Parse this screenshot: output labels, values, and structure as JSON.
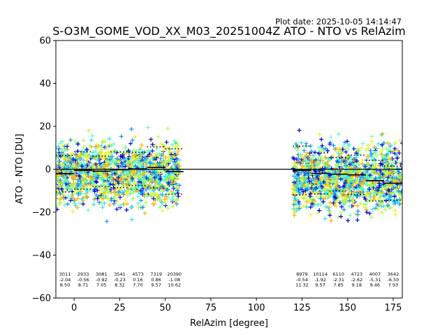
{
  "plot_date": "Plot date: 2025-10-05 14:14:47",
  "chart_data": {
    "type": "scatter",
    "title": "S-O3M_GOME_VOD_XX_M03_20251004Z ATO - NTO vs RelAzim",
    "xlabel": "RelAzim [degree]",
    "ylabel": "ATO - NTO [DU]",
    "xlim": [
      -10,
      180
    ],
    "ylim": [
      -60,
      60
    ],
    "xticks": [
      0,
      25,
      50,
      75,
      100,
      125,
      150,
      175
    ],
    "yticks": [
      -60,
      -40,
      -20,
      0,
      20,
      40,
      60
    ],
    "grid": false,
    "marker": "+",
    "colormap": [
      "#0000d8",
      "#1590f0",
      "#2de2e8",
      "#5effc0",
      "#b0ff50",
      "#f0f020",
      "#ffb000"
    ],
    "clusters": [
      {
        "x_range": [
          -10,
          58
        ],
        "y_center": -2,
        "spread": 13
      },
      {
        "x_range": [
          120,
          180
        ],
        "y_center": -4,
        "spread": 14
      }
    ],
    "bins": [
      {
        "x_start": -10,
        "x_end": 0,
        "mean": -2.04,
        "sigma": 8.5,
        "n": 3011
      },
      {
        "x_start": 0,
        "x_end": 10,
        "mean": -0.56,
        "sigma": 8.71,
        "n": 2933
      },
      {
        "x_start": 10,
        "x_end": 20,
        "mean": -0.92,
        "sigma": 7.05,
        "n": 3081
      },
      {
        "x_start": 20,
        "x_end": 30,
        "mean": -0.23,
        "sigma": 8.32,
        "n": 3541
      },
      {
        "x_start": 30,
        "x_end": 40,
        "mean": 0.16,
        "sigma": 7.7,
        "n": 4573
      },
      {
        "x_start": 40,
        "x_end": 50,
        "mean": 0.86,
        "sigma": 9.57,
        "n": 7319
      },
      {
        "x_start": 50,
        "x_end": 60,
        "mean": -1.08,
        "sigma": 10.62,
        "n": 20390
      },
      {
        "x_start": 120,
        "x_end": 130,
        "mean": -0.54,
        "sigma": 11.32,
        "n": 8979
      },
      {
        "x_start": 130,
        "x_end": 140,
        "mean": -1.92,
        "sigma": 9.57,
        "n": 10114
      },
      {
        "x_start": 140,
        "x_end": 150,
        "mean": -2.31,
        "sigma": 7.85,
        "n": 6110
      },
      {
        "x_start": 150,
        "x_end": 160,
        "mean": -2.62,
        "sigma": 9.18,
        "n": 4723
      },
      {
        "x_start": 160,
        "x_end": 170,
        "mean": -5.31,
        "sigma": 9.46,
        "n": 4007
      },
      {
        "x_start": 170,
        "x_end": 180,
        "mean": -6.5,
        "sigma": 7.93,
        "n": 3642
      }
    ],
    "annotations": [
      {
        "x": -5,
        "n": "3011",
        "mean": "-2.04",
        "sigma": "8.50"
      },
      {
        "x": 5,
        "n": "2933",
        "mean": "-0.56",
        "sigma": "8.71"
      },
      {
        "x": 15,
        "n": "3081",
        "mean": "-0.92",
        "sigma": "7.05"
      },
      {
        "x": 25,
        "n": "3541",
        "mean": "-0.23",
        "sigma": "8.32"
      },
      {
        "x": 35,
        "n": "4573",
        "mean": "0.16",
        "sigma": "7.70"
      },
      {
        "x": 45,
        "n": "7319",
        "mean": "0.86",
        "sigma": "9.57"
      },
      {
        "x": 55,
        "n": "20390",
        "mean": "-1.08",
        "sigma": "10.62"
      },
      {
        "x": 125,
        "n": "8979",
        "mean": "-0.54",
        "sigma": "11.32"
      },
      {
        "x": 135,
        "n": "10114",
        "mean": "-1.92",
        "sigma": "9.57"
      },
      {
        "x": 145,
        "n": "6110",
        "mean": "-2.31",
        "sigma": "7.85"
      },
      {
        "x": 155,
        "n": "4723",
        "mean": "-2.62",
        "sigma": "9.18"
      },
      {
        "x": 165,
        "n": "4007",
        "mean": "-5.31",
        "sigma": "9.46"
      },
      {
        "x": 175,
        "n": "3642",
        "mean": "-6.50",
        "sigma": "7.93"
      }
    ]
  }
}
